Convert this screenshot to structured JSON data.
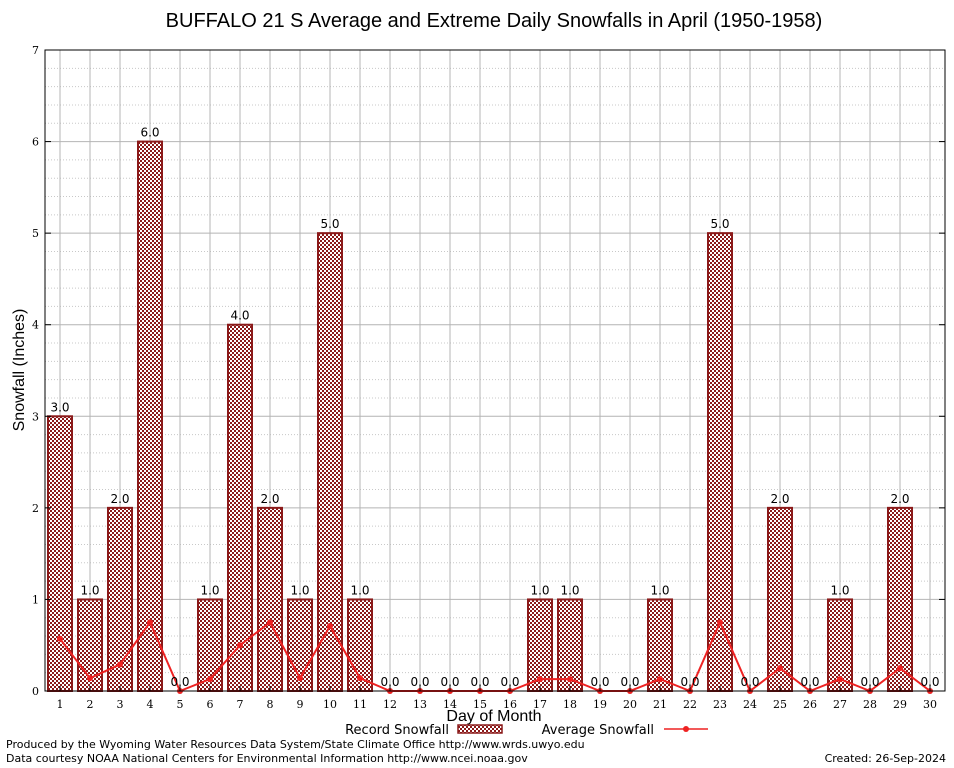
{
  "chart_data": {
    "type": "bar",
    "title": "BUFFALO 21 S Average and Extreme Daily Snowfalls in April (1950-1958)",
    "xlabel": "Day of Month",
    "ylabel": "Snowfall (Inches)",
    "ylim": [
      0,
      7
    ],
    "yticks": [
      "0",
      "1",
      "2",
      "3",
      "4",
      "5",
      "6",
      "7"
    ],
    "categories": [
      "1",
      "2",
      "3",
      "4",
      "5",
      "6",
      "7",
      "8",
      "9",
      "10",
      "11",
      "12",
      "13",
      "14",
      "15",
      "16",
      "17",
      "18",
      "19",
      "20",
      "21",
      "22",
      "23",
      "24",
      "25",
      "26",
      "27",
      "28",
      "29",
      "30"
    ],
    "series": [
      {
        "name": "Record Snowfall",
        "kind": "bar",
        "color": "#8b1a1a",
        "values": [
          3.0,
          1.0,
          2.0,
          6.0,
          0.0,
          1.0,
          4.0,
          2.0,
          1.0,
          5.0,
          1.0,
          0.0,
          0.0,
          0.0,
          0.0,
          0.0,
          1.0,
          1.0,
          0.0,
          0.0,
          1.0,
          0.0,
          5.0,
          0.0,
          2.0,
          0.0,
          1.0,
          0.0,
          2.0,
          0.0
        ],
        "labels": [
          "3.0",
          "1.0",
          "2.0",
          "6.0",
          "0.0",
          "1.0",
          "4.0",
          "2.0",
          "1.0",
          "5.0",
          "1.0",
          "0.0",
          "0.0",
          "0.0",
          "0.0",
          "0.0",
          "1.0",
          "1.0",
          "0.0",
          "0.0",
          "1.0",
          "0.0",
          "5.0",
          "0.0",
          "2.0",
          "0.0",
          "1.0",
          "0.0",
          "2.0",
          "0.0"
        ]
      },
      {
        "name": "Average Snowfall",
        "kind": "line",
        "color": "#ee2222",
        "values": [
          0.57,
          0.14,
          0.29,
          0.75,
          0.0,
          0.13,
          0.5,
          0.75,
          0.14,
          0.71,
          0.14,
          0.0,
          0.0,
          0.0,
          0.0,
          0.0,
          0.13,
          0.13,
          0.0,
          0.0,
          0.13,
          0.0,
          0.75,
          0.0,
          0.25,
          0.0,
          0.13,
          0.0,
          0.25,
          0.0
        ]
      }
    ],
    "grid": true,
    "legend": "bottom-center"
  },
  "footer": {
    "produced_by": "Produced by the Wyoming Water Resources Data System/State Climate Office http://www.wrds.uwyo.edu",
    "courtesy": "Data courtesy NOAA National Centers for Environmental Information http://www.ncei.noaa.gov",
    "created": "Created:  26-Sep-2024"
  }
}
